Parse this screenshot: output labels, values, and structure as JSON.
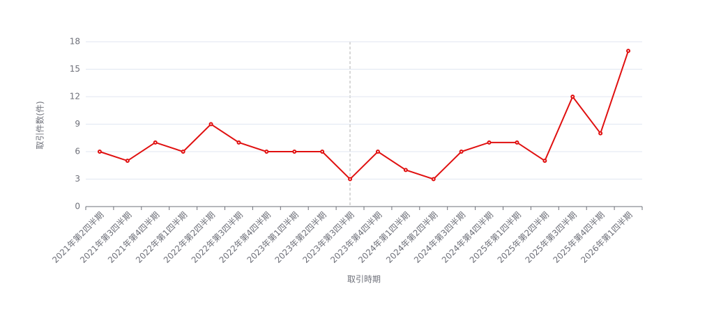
{
  "chart_data": {
    "type": "line",
    "x_label": "取引時期",
    "y_label": "取引件数(件)",
    "categories": [
      "2021年第2四半期",
      "2021年第3四半期",
      "2021年第4四半期",
      "2022年第1四半期",
      "2022年第2四半期",
      "2022年第3四半期",
      "2022年第4四半期",
      "2023年第1四半期",
      "2023年第2四半期",
      "2023年第3四半期",
      "2023年第4四半期",
      "2024年第1四半期",
      "2024年第2四半期",
      "2024年第3四半期",
      "2024年第4四半期",
      "2025年第1四半期",
      "2025年第2四半期",
      "2025年第3四半期",
      "2025年第4四半期",
      "2026年第1四半期"
    ],
    "values": [
      6,
      5,
      7,
      6,
      9,
      7,
      6,
      6,
      6,
      3,
      6,
      4,
      3,
      6,
      7,
      7,
      5,
      12,
      8,
      17
    ],
    "color": "#e01010",
    "ylim": [
      0,
      18
    ],
    "yticks": [
      0,
      3,
      6,
      9,
      12,
      15,
      18
    ],
    "grid": true
  }
}
